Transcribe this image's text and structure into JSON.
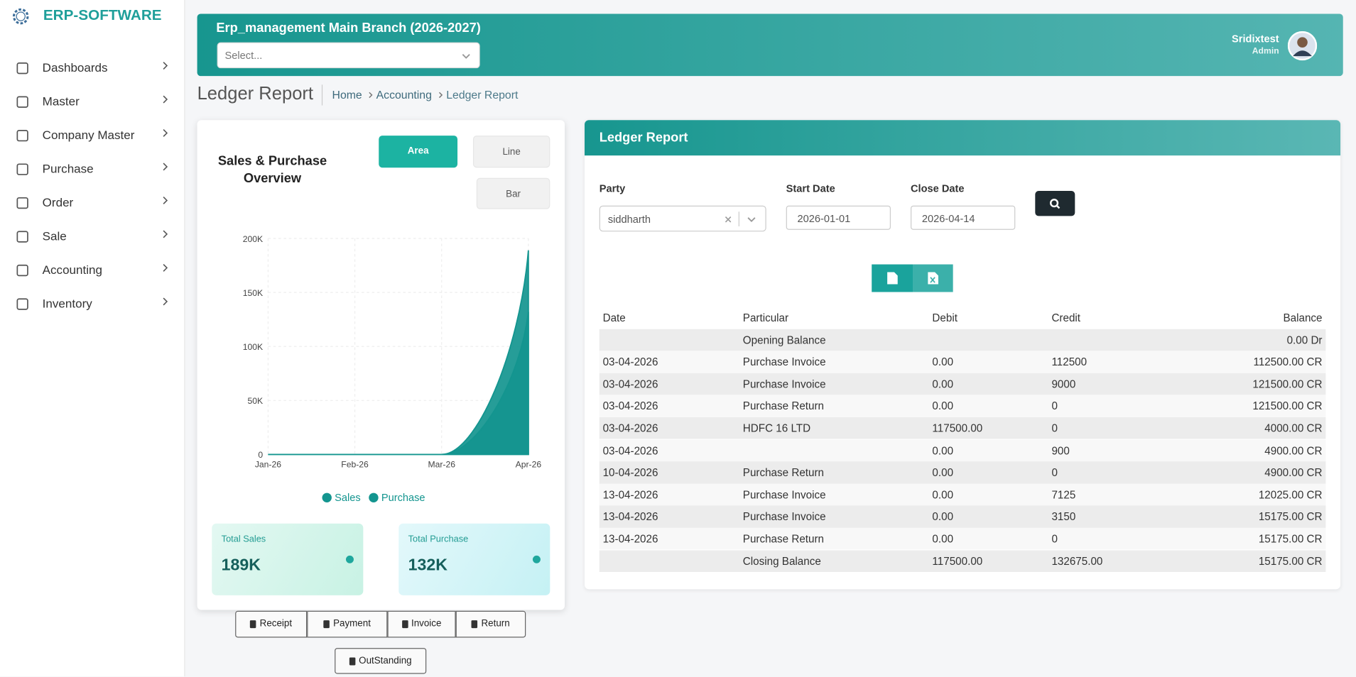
{
  "sidebar": {
    "brand": "ERP-SOFTWARE",
    "menu": [
      "Dashboards",
      "Master",
      "Company Master",
      "Purchase",
      "Order",
      "Sale",
      "Accounting",
      "Inventory"
    ]
  },
  "header": {
    "branch": "Erp_management Main Branch (2026-2027)",
    "select_placeholder": "Select...",
    "user": "Sridixtest",
    "role": "Admin"
  },
  "page": {
    "title": "Ledger Report",
    "breadcrumbs": [
      "Home",
      "Accounting",
      "Ledger Report"
    ]
  },
  "chart_buttons": [
    "Area",
    "Line",
    "Bar"
  ],
  "chart_data": {
    "type": "area",
    "title": "Sales & Purchase Overview",
    "categories": [
      "Jan-26",
      "Feb-26",
      "Mar-26",
      "Apr-26"
    ],
    "series": [
      {
        "name": "Sales",
        "color": "#13958f",
        "values": [
          0,
          0,
          0,
          189000
        ]
      },
      {
        "name": "Purchase",
        "color": "#13958f",
        "values": [
          0,
          0,
          0,
          132000
        ]
      }
    ],
    "ylim": [
      0,
      200000
    ],
    "yticks": [
      0,
      {
        "value": 50000,
        "label": "50K"
      },
      {
        "value": 100000,
        "label": "100K"
      },
      {
        "value": 150000,
        "label": "150K"
      },
      {
        "value": 200000,
        "label": "200K"
      }
    ],
    "grid": true
  },
  "stats": [
    {
      "label": "Total Sales",
      "value": "189K"
    },
    {
      "label": "Total Purchase",
      "value": "132K"
    }
  ],
  "actions": [
    "Receipt",
    "Payment",
    "Invoice",
    "Return"
  ],
  "outstanding": "OutStanding",
  "ledger": {
    "title": "Ledger Report",
    "party_label": "Party",
    "party": "siddharth",
    "start_label": "Start Date",
    "start": "2026-01-01",
    "close_label": "Close Date",
    "close": "2026-04-14",
    "columns": [
      "Date",
      "Particular",
      "Debit",
      "Credit",
      "Balance"
    ],
    "rows": [
      [
        null,
        "Opening Balance",
        null,
        null,
        "0.00 Dr"
      ],
      [
        "03-04-2026",
        "Purchase Invoice",
        "0.00",
        "112500",
        "112500.00 CR"
      ],
      [
        "03-04-2026",
        "Purchase Invoice",
        "0.00",
        "9000",
        "121500.00 CR"
      ],
      [
        "03-04-2026",
        "Purchase Return",
        "0.00",
        "0",
        "121500.00 CR"
      ],
      [
        "03-04-2026",
        "HDFC 16 LTD",
        "117500.00",
        "0",
        "4000.00 CR"
      ],
      [
        "03-04-2026",
        null,
        "0.00",
        "900",
        "4900.00 CR"
      ],
      [
        "10-04-2026",
        "Purchase Return",
        "0.00",
        "0",
        "4900.00 CR"
      ],
      [
        "13-04-2026",
        "Purchase Invoice",
        "0.00",
        "7125",
        "12025.00 CR"
      ],
      [
        "13-04-2026",
        "Purchase Invoice",
        "0.00",
        "3150",
        "15175.00 CR"
      ],
      [
        "13-04-2026",
        "Purchase Return",
        "0.00",
        "0",
        "15175.00 CR"
      ],
      [
        null,
        "Closing Balance",
        "117500.00",
        "132675.00",
        "15175.00 CR"
      ]
    ]
  }
}
